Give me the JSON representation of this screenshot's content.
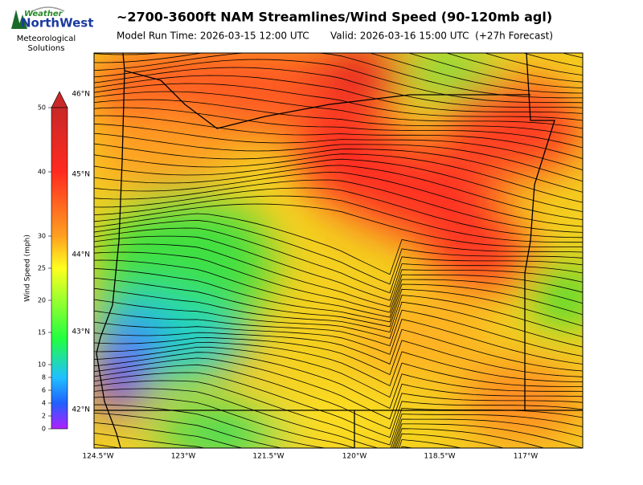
{
  "header": {
    "logo_top": "Weather",
    "logo_main": "NorthWest",
    "company": "Meteorological Solutions",
    "title": "~2700-3600ft NAM Streamlines/Wind Speed (90-120mb agl)",
    "model_run": "Model Run Time: 2026-03-15 12:00 UTC",
    "valid": "Valid: 2026-03-16 15:00 UTC  (+27h Forecast)"
  },
  "colorbar": {
    "label": "Wind Speed (mph)",
    "ylim": [
      0,
      50
    ],
    "ticks": [
      0,
      2,
      4,
      6,
      8,
      10,
      15,
      20,
      25,
      30,
      40,
      50
    ]
  },
  "map": {
    "lat_labels": [
      "46°N",
      "45°N",
      "44°N",
      "43°N",
      "42°N"
    ],
    "lon_labels": [
      "124.5°W",
      "123°W",
      "121.5°W",
      "120°W",
      "118.5°W",
      "117°W"
    ]
  }
}
